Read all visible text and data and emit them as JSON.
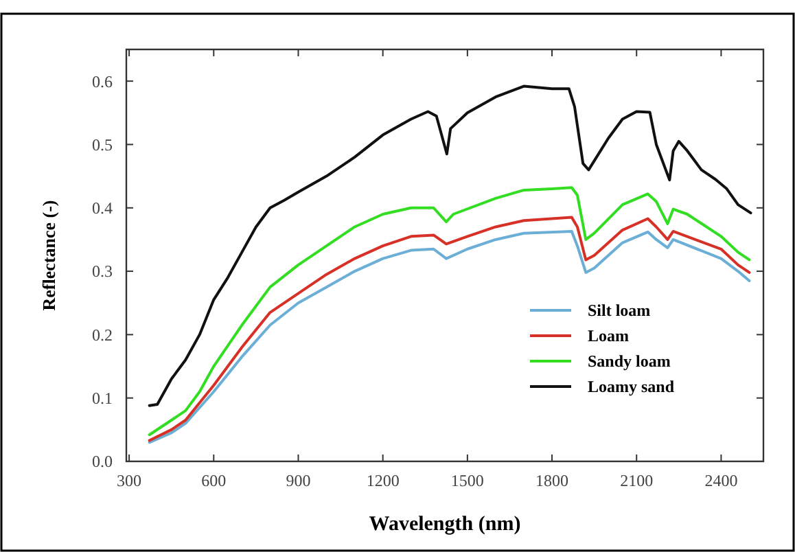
{
  "chart_data": {
    "type": "line",
    "xlabel": "Wavelength (nm)",
    "ylabel": "Reflectance (-)",
    "xlim": [
      290,
      2550
    ],
    "ylim": [
      0,
      0.65
    ],
    "xticks": [
      300,
      600,
      900,
      1200,
      1500,
      1800,
      2100,
      2400
    ],
    "yticks": [
      {
        "value": 0,
        "label": "0.0"
      },
      0.1,
      0.2,
      0.3,
      0.4,
      0.5,
      0.6
    ],
    "grid": false,
    "legend": "bottom right",
    "line_style": "solid",
    "series": [
      {
        "name": "Silt loam",
        "color": "#6baed6",
        "x": [
          372,
          450,
          500,
          600,
          700,
          800,
          900,
          1000,
          1100,
          1200,
          1300,
          1380,
          1425,
          1500,
          1600,
          1700,
          1870,
          1890,
          1920,
          1950,
          2050,
          2140,
          2170,
          2210,
          2230,
          2400,
          2460,
          2500
        ],
        "values": [
          0.03,
          0.045,
          0.06,
          0.11,
          0.165,
          0.215,
          0.25,
          0.275,
          0.3,
          0.32,
          0.333,
          0.335,
          0.32,
          0.335,
          0.35,
          0.36,
          0.363,
          0.34,
          0.298,
          0.305,
          0.345,
          0.362,
          0.35,
          0.337,
          0.35,
          0.32,
          0.3,
          0.285
        ]
      },
      {
        "name": "Loam",
        "color": "#d73027",
        "x": [
          372,
          450,
          500,
          600,
          700,
          800,
          900,
          1000,
          1100,
          1200,
          1300,
          1380,
          1425,
          1500,
          1600,
          1700,
          1870,
          1890,
          1920,
          1950,
          2050,
          2140,
          2170,
          2210,
          2230,
          2400,
          2460,
          2500
        ],
        "values": [
          0.033,
          0.05,
          0.065,
          0.12,
          0.18,
          0.235,
          0.265,
          0.295,
          0.32,
          0.34,
          0.355,
          0.357,
          0.343,
          0.355,
          0.37,
          0.38,
          0.385,
          0.37,
          0.318,
          0.325,
          0.365,
          0.383,
          0.37,
          0.35,
          0.363,
          0.335,
          0.31,
          0.298
        ]
      },
      {
        "name": "Sandy loam",
        "color": "#33dd22",
        "x": [
          372,
          450,
          500,
          550,
          600,
          700,
          800,
          900,
          1000,
          1100,
          1200,
          1300,
          1380,
          1425,
          1450,
          1600,
          1700,
          1800,
          1870,
          1890,
          1920,
          1950,
          2050,
          2140,
          2170,
          2210,
          2230,
          2280,
          2400,
          2460,
          2500
        ],
        "values": [
          0.042,
          0.065,
          0.08,
          0.11,
          0.15,
          0.215,
          0.275,
          0.31,
          0.34,
          0.37,
          0.39,
          0.4,
          0.4,
          0.378,
          0.39,
          0.415,
          0.428,
          0.43,
          0.432,
          0.42,
          0.35,
          0.36,
          0.405,
          0.422,
          0.41,
          0.375,
          0.398,
          0.39,
          0.355,
          0.33,
          0.318
        ]
      },
      {
        "name": "Loamy sand",
        "color": "#111111",
        "x": [
          372,
          400,
          450,
          500,
          550,
          600,
          650,
          700,
          750,
          800,
          850,
          900,
          1000,
          1100,
          1200,
          1300,
          1360,
          1390,
          1427,
          1440,
          1500,
          1600,
          1700,
          1800,
          1860,
          1880,
          1910,
          1930,
          2000,
          2050,
          2100,
          2147,
          2170,
          2217,
          2230,
          2250,
          2280,
          2330,
          2380,
          2420,
          2460,
          2505
        ],
        "values": [
          0.088,
          0.09,
          0.13,
          0.16,
          0.2,
          0.255,
          0.29,
          0.33,
          0.37,
          0.4,
          0.412,
          0.425,
          0.45,
          0.48,
          0.515,
          0.54,
          0.552,
          0.545,
          0.485,
          0.525,
          0.55,
          0.575,
          0.592,
          0.588,
          0.588,
          0.56,
          0.47,
          0.46,
          0.51,
          0.54,
          0.552,
          0.551,
          0.5,
          0.444,
          0.49,
          0.505,
          0.49,
          0.46,
          0.445,
          0.43,
          0.405,
          0.392
        ]
      }
    ]
  }
}
